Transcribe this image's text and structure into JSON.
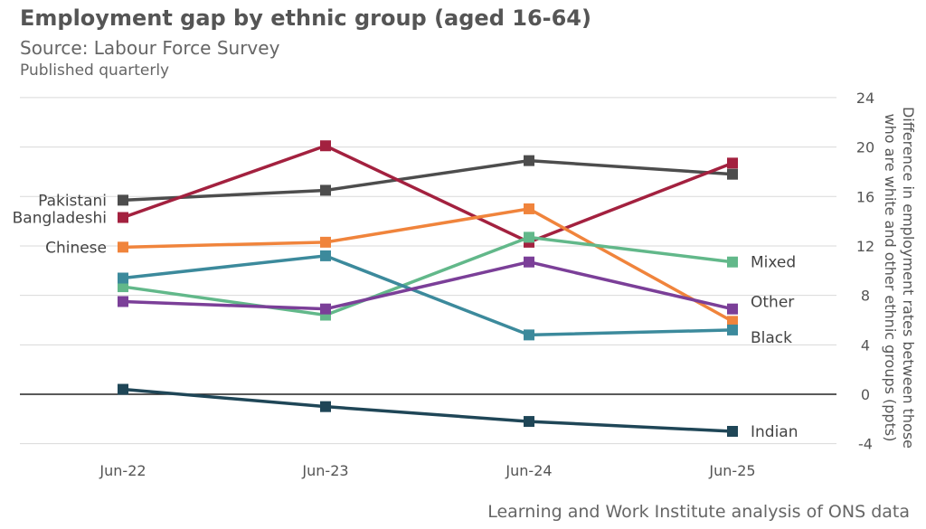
{
  "chart_data": {
    "type": "line",
    "title": "Employment gap by ethnic group (aged 16-64)",
    "subtitle": "Source: Labour Force Survey",
    "note": "Published quarterly",
    "footer": "Learning and Work Institute analysis of ONS data",
    "ylabel": "Difference in employment rates between those who are white and other ethnic groups (ppts)",
    "ylabel_lines": [
      "Difference in employment rates between those",
      "who are white and other ethnic groups (ppts)"
    ],
    "x": [
      "Jun-22",
      "Jun-23",
      "Jun-24",
      "Jun-25"
    ],
    "ylim": [
      -4,
      24
    ],
    "yticks": [
      -4,
      0,
      4,
      8,
      12,
      16,
      20,
      24
    ],
    "grid": true,
    "series": [
      {
        "name": "Pakistani",
        "color": "#4d4d4d",
        "values": [
          15.7,
          16.5,
          18.9,
          17.8
        ],
        "label_side": "left"
      },
      {
        "name": "Bangladeshi",
        "color": "#a3213f",
        "values": [
          14.3,
          20.1,
          12.3,
          18.7
        ],
        "label_side": "left"
      },
      {
        "name": "Chinese",
        "color": "#f0843c",
        "values": [
          11.9,
          12.3,
          15.0,
          5.9
        ],
        "label_side": "left"
      },
      {
        "name": "Mixed",
        "color": "#62b88a",
        "values": [
          8.7,
          6.4,
          12.7,
          10.7
        ],
        "label_side": "right"
      },
      {
        "name": "Black",
        "color": "#3c8a9c",
        "values": [
          9.4,
          11.2,
          4.8,
          5.2
        ],
        "label_side": "right"
      },
      {
        "name": "Other",
        "color": "#7b3f98",
        "values": [
          7.5,
          6.9,
          10.7,
          6.9
        ],
        "label_side": "right"
      },
      {
        "name": "Indian",
        "color": "#1f4657",
        "values": [
          0.4,
          -1.0,
          -2.2,
          -3.0
        ],
        "label_side": "right"
      }
    ]
  }
}
